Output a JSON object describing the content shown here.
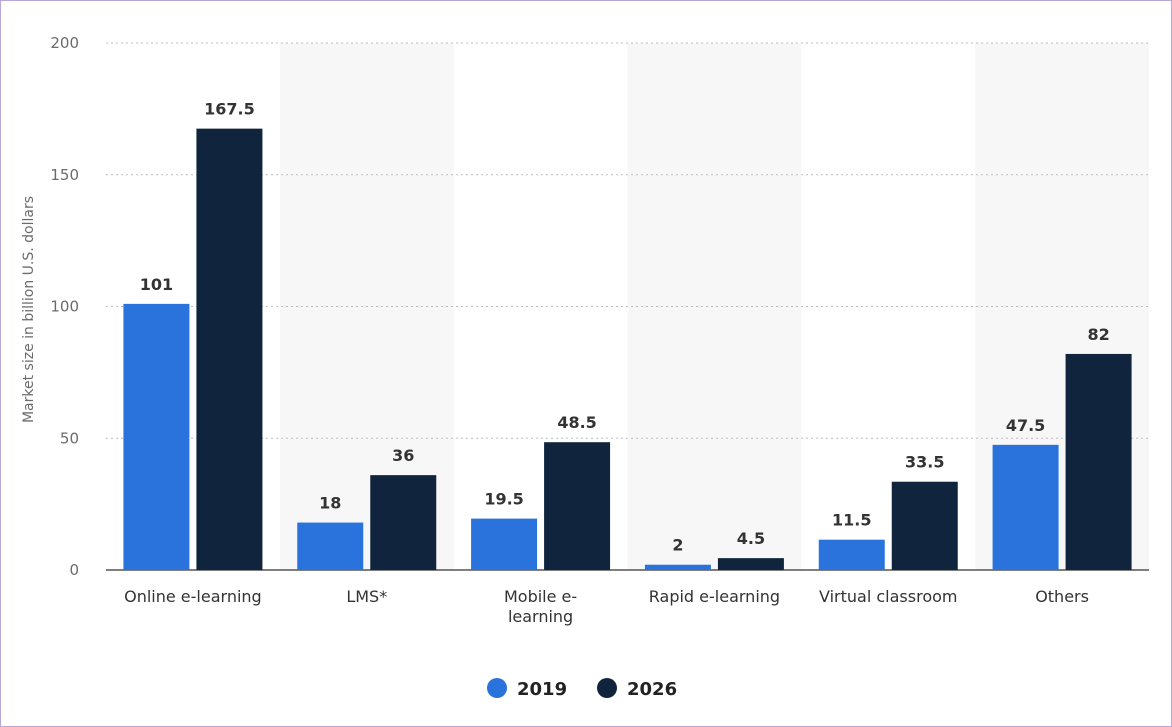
{
  "chart_data": {
    "type": "bar",
    "title": "",
    "xlabel": "",
    "ylabel": "Market size in billion U.S. dollars",
    "categories": [
      [
        "Online e-learning"
      ],
      [
        "LMS*"
      ],
      [
        "Mobile e-",
        "learning"
      ],
      [
        "Rapid e-learning"
      ],
      [
        "Virtual classroom"
      ],
      [
        "Others"
      ]
    ],
    "series": [
      {
        "name": "2019",
        "color": "#2a73dd",
        "values": [
          101,
          18,
          19.5,
          2,
          11.5,
          47.5
        ]
      },
      {
        "name": "2026",
        "color": "#10253d",
        "values": [
          167.5,
          36,
          48.5,
          4.5,
          33.5,
          82
        ]
      }
    ],
    "ylim": [
      0,
      200
    ],
    "yticks": [
      0,
      50,
      100,
      150,
      200
    ],
    "grid": true,
    "legend": "bottom-center"
  }
}
